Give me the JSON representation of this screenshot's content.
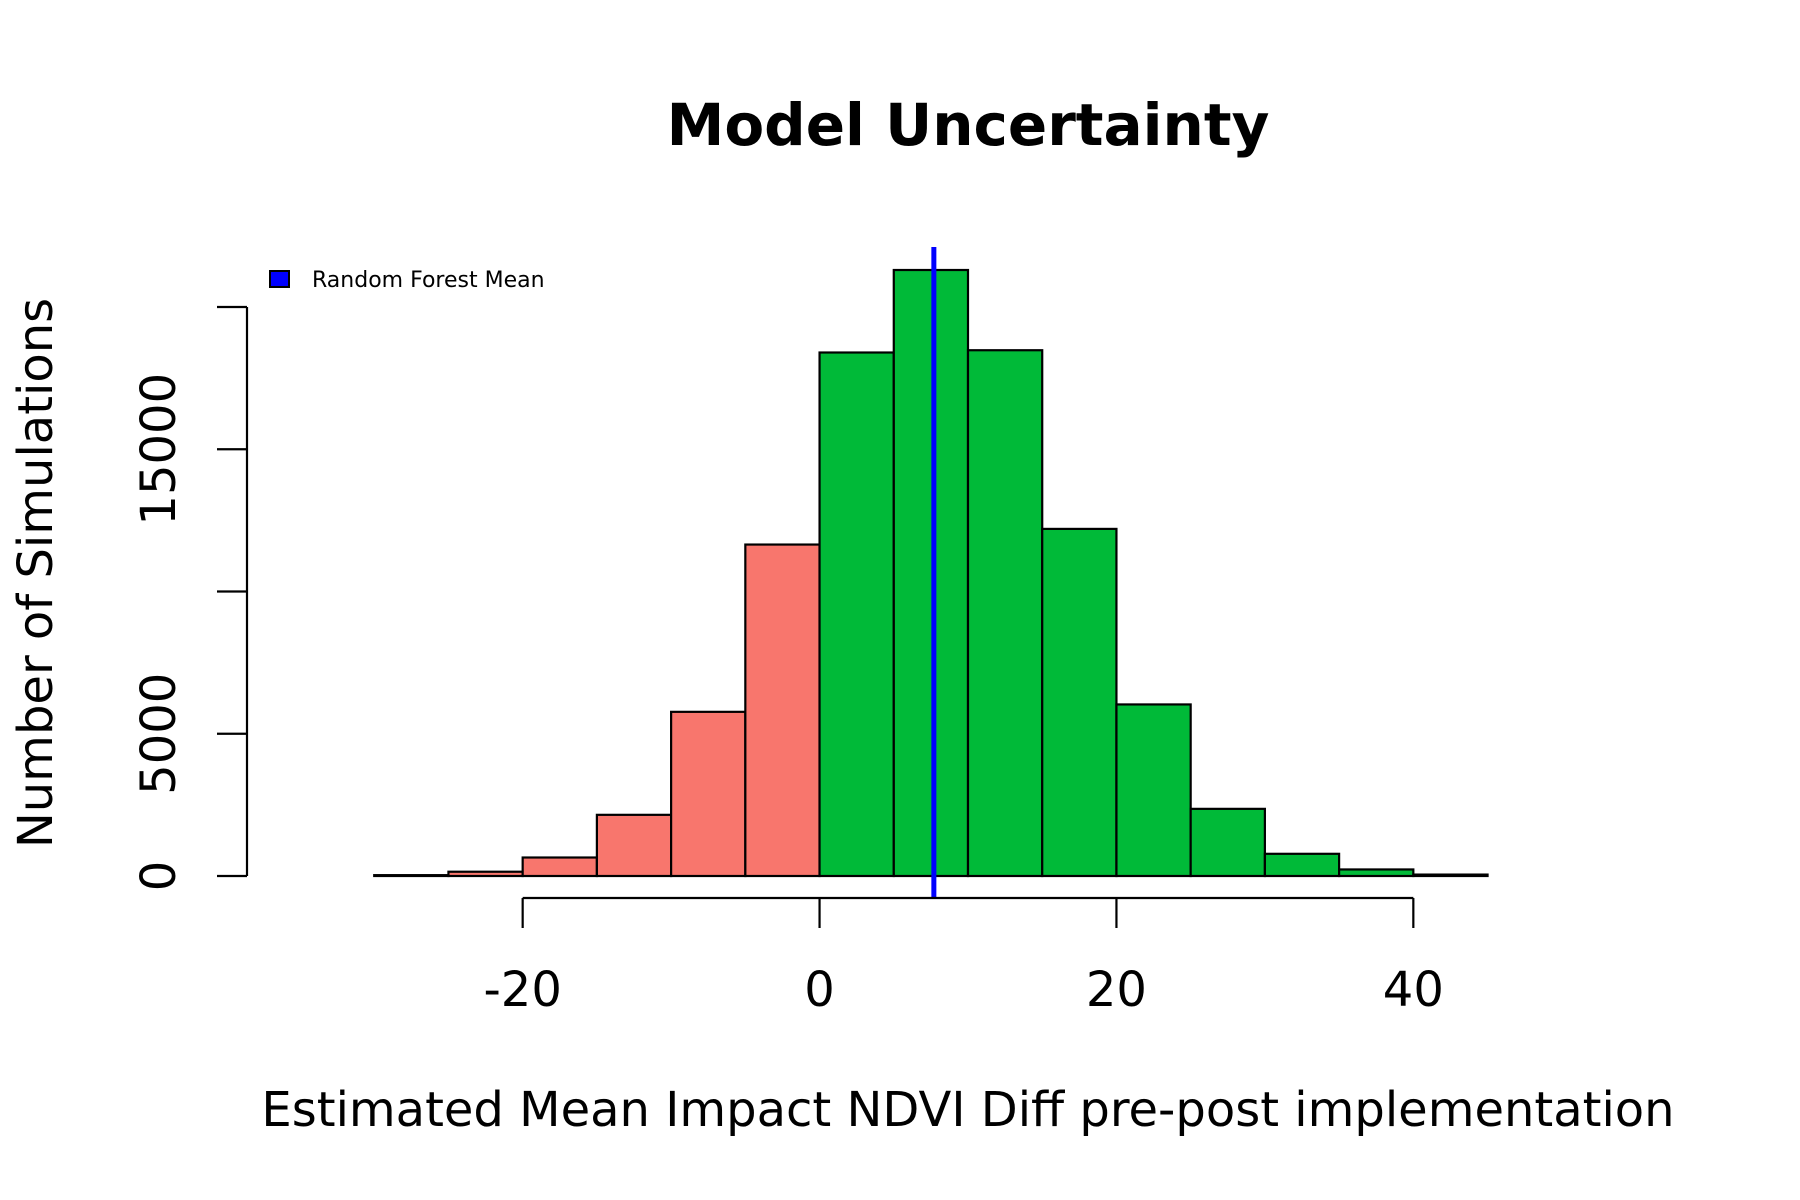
{
  "chart_data": {
    "type": "bar",
    "title": "Model Uncertainty",
    "xlabel": "Estimated Mean Impact NDVI Diff pre-post implementation",
    "ylabel": "Number of Simulations",
    "bin_width": 5,
    "bins": [
      {
        "x0": -35,
        "x1": -30,
        "count": 0,
        "group": "negative"
      },
      {
        "x0": -30,
        "x1": -25,
        "count": 30,
        "group": "negative"
      },
      {
        "x0": -25,
        "x1": -20,
        "count": 150,
        "group": "negative"
      },
      {
        "x0": -20,
        "x1": -15,
        "count": 650,
        "group": "negative"
      },
      {
        "x0": -15,
        "x1": -10,
        "count": 2150,
        "group": "negative"
      },
      {
        "x0": -10,
        "x1": -5,
        "count": 5770,
        "group": "negative"
      },
      {
        "x0": -5,
        "x1": 0,
        "count": 11650,
        "group": "negative"
      },
      {
        "x0": 0,
        "x1": 5,
        "count": 18400,
        "group": "positive"
      },
      {
        "x0": 5,
        "x1": 10,
        "count": 21300,
        "group": "positive"
      },
      {
        "x0": 10,
        "x1": 15,
        "count": 18480,
        "group": "positive"
      },
      {
        "x0": 15,
        "x1": 20,
        "count": 12200,
        "group": "positive"
      },
      {
        "x0": 20,
        "x1": 25,
        "count": 6030,
        "group": "positive"
      },
      {
        "x0": 25,
        "x1": 30,
        "count": 2360,
        "group": "positive"
      },
      {
        "x0": 30,
        "x1": 35,
        "count": 780,
        "group": "positive"
      },
      {
        "x0": 35,
        "x1": 40,
        "count": 230,
        "group": "positive"
      },
      {
        "x0": 40,
        "x1": 45,
        "count": 50,
        "group": "positive"
      },
      {
        "x0": 45,
        "x1": 50,
        "count": 0,
        "group": "positive"
      },
      {
        "x0": 50,
        "x1": 55,
        "count": 0,
        "group": "positive"
      }
    ],
    "mean_line": {
      "x": 7.7,
      "label": "Random Forest Mean"
    },
    "xlim": [
      -35,
      55
    ],
    "ylim": [
      0,
      21300
    ],
    "x_ticks": [
      -20,
      0,
      20,
      40
    ],
    "x_tick_labels": [
      "-20",
      "0",
      "20",
      "40"
    ],
    "y_ticks": [
      0,
      5000,
      10000,
      15000,
      20000
    ],
    "y_tick_labels": [
      "0",
      "5000",
      "",
      "15000",
      ""
    ],
    "legend": {
      "position": "top-left",
      "entries": [
        "Random Forest Mean"
      ]
    },
    "grid": false,
    "colors": {
      "negative": "#f8766d",
      "positive": "#00ba38",
      "mean_line": "#0000ff",
      "outline": "#000000"
    }
  }
}
